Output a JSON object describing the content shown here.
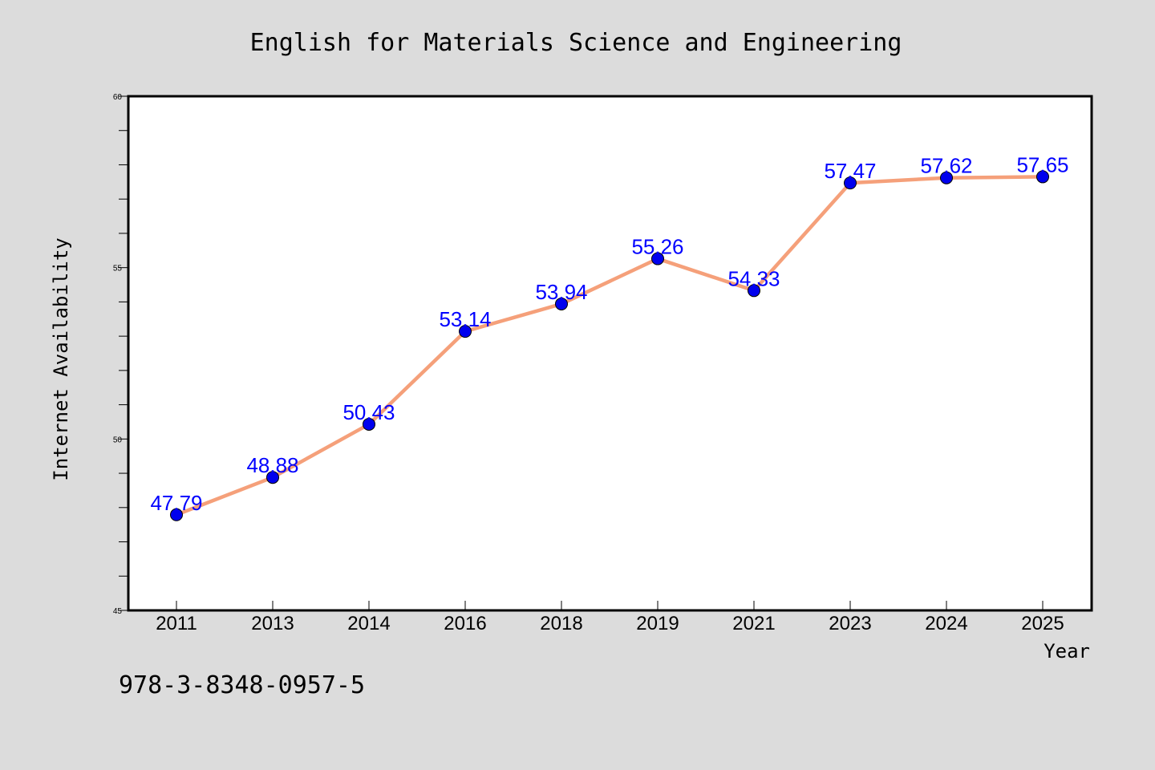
{
  "chart_data": {
    "type": "line",
    "title": "English for Materials Science and Engineering",
    "xlabel": "Year",
    "ylabel": "Internet Availability",
    "categories": [
      "2011",
      "2013",
      "2014",
      "2016",
      "2018",
      "2019",
      "2021",
      "2023",
      "2024",
      "2025"
    ],
    "series": [
      {
        "values": [
          47.79,
          48.88,
          50.43,
          53.14,
          53.94,
          55.26,
          54.33,
          57.47,
          57.62,
          57.65
        ],
        "line_color": "#f5a07a",
        "marker_color": "#0000ee"
      }
    ],
    "data_labels": [
      "47.79",
      "48.88",
      "50.43",
      "53.14",
      "53.94",
      "55.26",
      "54.33",
      "57.47",
      "57.62",
      "57.65"
    ],
    "ylim": [
      45,
      60
    ],
    "yticks_major": [
      45,
      50,
      55,
      60
    ],
    "ytick_labels": [
      "45",
      "50",
      "55",
      "60"
    ],
    "yticks_minor_step": 1,
    "grid": false,
    "legend": "none"
  },
  "footer": {
    "isbn": "978-3-8348-0957-5"
  },
  "colors": {
    "background": "#dcdcdc",
    "plot_background": "#ffffff",
    "data_label": "#0000ff"
  }
}
